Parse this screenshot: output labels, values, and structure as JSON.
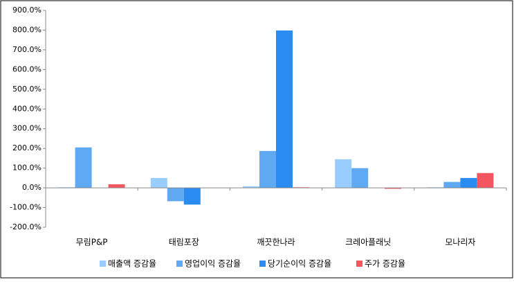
{
  "chart_data": {
    "type": "bar",
    "categories": [
      "무림P&P",
      "태림포장",
      "깨끗한나라",
      "크레아플래닛",
      "모나리자"
    ],
    "series": [
      {
        "name": "매출액 증감율",
        "color": "#99ccff",
        "values": [
          3,
          50,
          8,
          145,
          3
        ]
      },
      {
        "name": "영업이익 증감율",
        "color": "#5ea9f2",
        "values": [
          205,
          -68,
          187,
          100,
          30
        ]
      },
      {
        "name": "당기순이익 증감율",
        "color": "#2a8cf0",
        "values": [
          0,
          -85,
          798,
          0,
          50
        ]
      },
      {
        "name": "주가 증감율",
        "color": "#f4565f",
        "values": [
          18,
          0,
          3,
          -5,
          75
        ]
      }
    ],
    "ylim": [
      -200,
      900
    ],
    "yticks": [
      {
        "value": -200,
        "label": "-200.0%"
      },
      {
        "value": -100,
        "label": "-100.0%"
      },
      {
        "value": 0,
        "label": "0.0%"
      },
      {
        "value": 100,
        "label": "100.0%"
      },
      {
        "value": 200,
        "label": "200.0%"
      },
      {
        "value": 300,
        "label": "300.0%"
      },
      {
        "value": 400,
        "label": "400.0%"
      },
      {
        "value": 500,
        "label": "500.0%"
      },
      {
        "value": 600,
        "label": "600.0%"
      },
      {
        "value": 700,
        "label": "700.0%"
      },
      {
        "value": 800,
        "label": "800.0%"
      },
      {
        "value": 900,
        "label": "900.0%"
      }
    ],
    "grid": false,
    "legend": "bottom"
  }
}
